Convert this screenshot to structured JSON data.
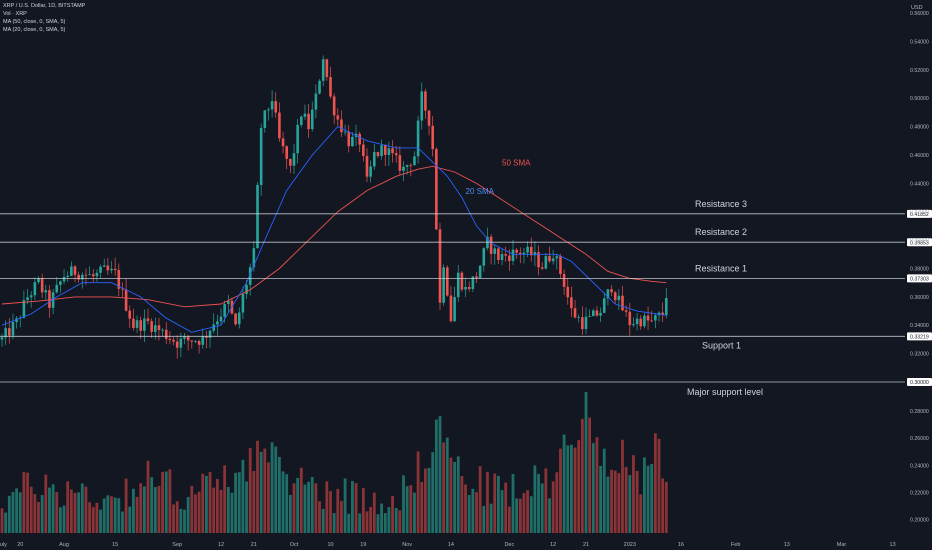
{
  "header": {
    "symbol_line": "XRP / U.S. Dollar, 1D, BITSTAMP",
    "vol_line": "Vol · XRP",
    "ma50_line": "MA (50, close, 0, SMA, 5)",
    "ma20_line": "MA (20, close, 0, SMA, 5)"
  },
  "axis": {
    "currency": "USD"
  },
  "colors": {
    "background": "#131722",
    "up": "#26a69a",
    "down": "#ef5350",
    "up_volume": "#1f6f68",
    "down_volume": "#8a3437",
    "sma50": "#ef5350",
    "sma20": "#2962ff",
    "level_line": "#d1d4dc",
    "text": "#d1d4dc",
    "axis_text": "#b2b5be"
  },
  "chart_data": {
    "type": "candlestick",
    "title": "XRP / U.S. Dollar, 1D, BITSTAMP",
    "ylabel": "USD",
    "ylim": [
      0.3,
      0.565
    ],
    "volume_ylim": [
      0.19,
      0.3
    ],
    "grid": false,
    "y_ticks": [
      0.56,
      0.54,
      0.52,
      0.5,
      0.48,
      0.46,
      0.44,
      0.42,
      0.4,
      0.38,
      0.36,
      0.34,
      0.32
    ],
    "volume_ticks": [
      0.28,
      0.26,
      0.24,
      0.22,
      0.2
    ],
    "x_ticks": [
      {
        "day": 0,
        "label": "July"
      },
      {
        "day": 5,
        "label": "20"
      },
      {
        "day": 17,
        "label": "Aug"
      },
      {
        "day": 31,
        "label": "15"
      },
      {
        "day": 48,
        "label": "Sep"
      },
      {
        "day": 60,
        "label": "12"
      },
      {
        "day": 69,
        "label": "21"
      },
      {
        "day": 80,
        "label": "Oct"
      },
      {
        "day": 90,
        "label": "10"
      },
      {
        "day": 99,
        "label": "19"
      },
      {
        "day": 111,
        "label": "Nov"
      },
      {
        "day": 123,
        "label": "14"
      },
      {
        "day": 139,
        "label": "Dec"
      },
      {
        "day": 151,
        "label": "12"
      },
      {
        "day": 160,
        "label": "21"
      },
      {
        "day": 172,
        "label": "2023"
      },
      {
        "day": 186,
        "label": "16"
      },
      {
        "day": 201,
        "label": "Feb"
      },
      {
        "day": 215,
        "label": "13"
      },
      {
        "day": 230,
        "label": "Mar"
      },
      {
        "day": 244,
        "label": "13"
      }
    ],
    "levels": [
      {
        "name": "Resistance 3",
        "value": 0.41852,
        "price_label": "0.41852"
      },
      {
        "name": "Resistance 2",
        "value": 0.39853,
        "price_label": "0.39853"
      },
      {
        "name": "Resistance 1",
        "value": 0.37303,
        "price_label": "0.37303"
      },
      {
        "name": "Support 1",
        "value": 0.33219,
        "price_label": "0.33219"
      },
      {
        "name": "Major support level",
        "value": 0.3,
        "price_label": "0.30000"
      }
    ],
    "series_labels": [
      {
        "name": "50 SMA",
        "day": 137,
        "value": 0.4525
      },
      {
        "name": "20 SMA",
        "day": 127,
        "value": 0.4325
      }
    ],
    "close_path": [
      [
        0,
        0.33
      ],
      [
        4,
        0.342
      ],
      [
        7,
        0.36
      ],
      [
        10,
        0.37
      ],
      [
        13,
        0.355
      ],
      [
        17,
        0.375
      ],
      [
        20,
        0.378
      ],
      [
        25,
        0.374
      ],
      [
        28,
        0.378
      ],
      [
        31,
        0.376
      ],
      [
        36,
        0.34
      ],
      [
        40,
        0.342
      ],
      [
        44,
        0.335
      ],
      [
        48,
        0.328
      ],
      [
        52,
        0.33
      ],
      [
        55,
        0.33
      ],
      [
        58,
        0.342
      ],
      [
        62,
        0.355
      ],
      [
        64,
        0.338
      ],
      [
        66,
        0.36
      ],
      [
        69,
        0.39
      ],
      [
        71,
        0.48
      ],
      [
        74,
        0.5
      ],
      [
        76,
        0.47
      ],
      [
        79,
        0.45
      ],
      [
        82,
        0.49
      ],
      [
        84,
        0.48
      ],
      [
        86,
        0.5
      ],
      [
        88,
        0.53
      ],
      [
        90,
        0.5
      ],
      [
        92,
        0.485
      ],
      [
        95,
        0.47
      ],
      [
        98,
        0.47
      ],
      [
        100,
        0.44
      ],
      [
        102,
        0.46
      ],
      [
        105,
        0.465
      ],
      [
        108,
        0.455
      ],
      [
        110,
        0.45
      ],
      [
        113,
        0.46
      ],
      [
        115,
        0.5
      ],
      [
        117,
        0.485
      ],
      [
        118,
        0.465
      ],
      [
        119,
        0.41
      ],
      [
        120,
        0.355
      ],
      [
        121,
        0.385
      ],
      [
        123,
        0.345
      ],
      [
        125,
        0.375
      ],
      [
        127,
        0.365
      ],
      [
        130,
        0.375
      ],
      [
        133,
        0.398
      ],
      [
        136,
        0.388
      ],
      [
        139,
        0.39
      ],
      [
        142,
        0.392
      ],
      [
        145,
        0.39
      ],
      [
        148,
        0.382
      ],
      [
        151,
        0.392
      ],
      [
        154,
        0.37
      ],
      [
        156,
        0.35
      ],
      [
        159,
        0.342
      ],
      [
        161,
        0.344
      ],
      [
        164,
        0.35
      ],
      [
        167,
        0.368
      ],
      [
        169,
        0.356
      ],
      [
        172,
        0.342
      ],
      [
        175,
        0.344
      ],
      [
        178,
        0.342
      ],
      [
        181,
        0.348
      ],
      [
        182,
        0.362
      ]
    ],
    "volume_path": [
      [
        0,
        0.215
      ],
      [
        10,
        0.225
      ],
      [
        20,
        0.22
      ],
      [
        30,
        0.215
      ],
      [
        40,
        0.23
      ],
      [
        50,
        0.22
      ],
      [
        60,
        0.225
      ],
      [
        70,
        0.25
      ],
      [
        80,
        0.23
      ],
      [
        90,
        0.22
      ],
      [
        100,
        0.215
      ],
      [
        110,
        0.22
      ],
      [
        115,
        0.24
      ],
      [
        120,
        0.27
      ],
      [
        125,
        0.235
      ],
      [
        130,
        0.225
      ],
      [
        140,
        0.22
      ],
      [
        150,
        0.23
      ],
      [
        155,
        0.26
      ],
      [
        160,
        0.28
      ],
      [
        165,
        0.245
      ],
      [
        170,
        0.25
      ],
      [
        175,
        0.225
      ],
      [
        180,
        0.255
      ],
      [
        182,
        0.22
      ]
    ],
    "sma20_path": [
      [
        0,
        0.34
      ],
      [
        8,
        0.348
      ],
      [
        15,
        0.36
      ],
      [
        22,
        0.37
      ],
      [
        30,
        0.37
      ],
      [
        38,
        0.36
      ],
      [
        45,
        0.345
      ],
      [
        52,
        0.335
      ],
      [
        60,
        0.34
      ],
      [
        67,
        0.37
      ],
      [
        72,
        0.4
      ],
      [
        78,
        0.435
      ],
      [
        85,
        0.46
      ],
      [
        92,
        0.48
      ],
      [
        100,
        0.47
      ],
      [
        108,
        0.465
      ],
      [
        114,
        0.465
      ],
      [
        118,
        0.455
      ],
      [
        122,
        0.445
      ],
      [
        126,
        0.43
      ],
      [
        130,
        0.41
      ],
      [
        134,
        0.398
      ],
      [
        140,
        0.39
      ],
      [
        146,
        0.39
      ],
      [
        152,
        0.39
      ],
      [
        156,
        0.385
      ],
      [
        162,
        0.37
      ],
      [
        168,
        0.355
      ],
      [
        174,
        0.35
      ],
      [
        182,
        0.347
      ]
    ],
    "sma50_path": [
      [
        0,
        0.355
      ],
      [
        10,
        0.357
      ],
      [
        20,
        0.36
      ],
      [
        30,
        0.36
      ],
      [
        40,
        0.358
      ],
      [
        50,
        0.353
      ],
      [
        60,
        0.355
      ],
      [
        68,
        0.365
      ],
      [
        76,
        0.38
      ],
      [
        84,
        0.4
      ],
      [
        92,
        0.42
      ],
      [
        100,
        0.435
      ],
      [
        108,
        0.445
      ],
      [
        114,
        0.45
      ],
      [
        118,
        0.452
      ],
      [
        124,
        0.448
      ],
      [
        130,
        0.44
      ],
      [
        136,
        0.43
      ],
      [
        142,
        0.42
      ],
      [
        148,
        0.41
      ],
      [
        154,
        0.4
      ],
      [
        160,
        0.39
      ],
      [
        166,
        0.378
      ],
      [
        172,
        0.373
      ],
      [
        178,
        0.371
      ],
      [
        182,
        0.37
      ]
    ]
  }
}
